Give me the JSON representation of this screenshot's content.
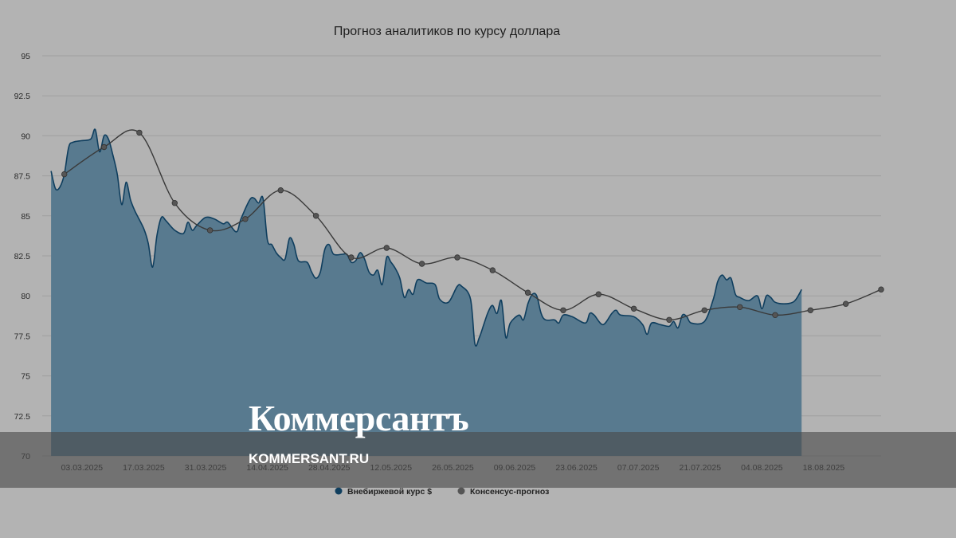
{
  "chart_data": {
    "type": "area",
    "title": "Прогноз аналитиков по курсу доллара",
    "xlabel": "",
    "ylabel": "",
    "ylim": [
      70,
      95
    ],
    "yticks": [
      70,
      72.5,
      75,
      77.5,
      80,
      82.5,
      85,
      87.5,
      90,
      92.5,
      95
    ],
    "xlim": [
      "2025-02-22",
      "2025-08-31"
    ],
    "xticks": [
      "03.03.2025",
      "17.03.2025",
      "31.03.2025",
      "14.04.2025",
      "28.04.2025",
      "12.05.2025",
      "26.05.2025",
      "09.06.2025",
      "23.06.2025",
      "07.07.2025",
      "21.07.2025",
      "04.08.2025",
      "18.08.2025"
    ],
    "grid": true,
    "legend_position": "bottom",
    "colors": {
      "area_fill": "#587a8f",
      "area_line": "#0f3e5e",
      "consensus_line": "#3a3a3a",
      "consensus_marker": "#555555"
    },
    "series": [
      {
        "name": "Внебиржевой курс $",
        "type": "area",
        "points": [
          [
            "2025-02-24",
            87.8
          ],
          [
            "2025-02-25",
            86.7
          ],
          [
            "2025-02-26",
            86.8
          ],
          [
            "2025-02-27",
            87.6
          ],
          [
            "2025-02-28",
            89.3
          ],
          [
            "2025-03-01",
            89.6
          ],
          [
            "2025-03-03",
            89.7
          ],
          [
            "2025-03-05",
            89.8
          ],
          [
            "2025-03-06",
            90.4
          ],
          [
            "2025-03-07",
            89.0
          ],
          [
            "2025-03-08",
            90.0
          ],
          [
            "2025-03-09",
            89.8
          ],
          [
            "2025-03-10",
            88.8
          ],
          [
            "2025-03-11",
            87.6
          ],
          [
            "2025-03-12",
            85.7
          ],
          [
            "2025-03-13",
            87.1
          ],
          [
            "2025-03-14",
            86.0
          ],
          [
            "2025-03-15",
            85.3
          ],
          [
            "2025-03-17",
            84.2
          ],
          [
            "2025-03-18",
            83.3
          ],
          [
            "2025-03-19",
            81.8
          ],
          [
            "2025-03-20",
            83.8
          ],
          [
            "2025-03-21",
            84.9
          ],
          [
            "2025-03-22",
            84.7
          ],
          [
            "2025-03-24",
            84.1
          ],
          [
            "2025-03-26",
            83.9
          ],
          [
            "2025-03-27",
            84.6
          ],
          [
            "2025-03-28",
            84.1
          ],
          [
            "2025-03-29",
            84.4
          ],
          [
            "2025-03-31",
            84.9
          ],
          [
            "2025-04-02",
            84.8
          ],
          [
            "2025-04-04",
            84.5
          ],
          [
            "2025-04-05",
            84.6
          ],
          [
            "2025-04-07",
            84.0
          ],
          [
            "2025-04-08",
            84.8
          ],
          [
            "2025-04-10",
            86.0
          ],
          [
            "2025-04-11",
            86.1
          ],
          [
            "2025-04-12",
            85.8
          ],
          [
            "2025-04-13",
            86.1
          ],
          [
            "2025-04-14",
            83.5
          ],
          [
            "2025-04-15",
            83.2
          ],
          [
            "2025-04-16",
            82.7
          ],
          [
            "2025-04-17",
            82.4
          ],
          [
            "2025-04-18",
            82.3
          ],
          [
            "2025-04-19",
            83.6
          ],
          [
            "2025-04-20",
            83.2
          ],
          [
            "2025-04-21",
            82.2
          ],
          [
            "2025-04-23",
            82.1
          ],
          [
            "2025-04-24",
            81.5
          ],
          [
            "2025-04-25",
            81.1
          ],
          [
            "2025-04-26",
            81.5
          ],
          [
            "2025-04-27",
            82.9
          ],
          [
            "2025-04-28",
            83.2
          ],
          [
            "2025-04-29",
            82.6
          ],
          [
            "2025-05-01",
            82.6
          ],
          [
            "2025-05-02",
            82.6
          ],
          [
            "2025-05-03",
            82.1
          ],
          [
            "2025-05-04",
            82.2
          ],
          [
            "2025-05-05",
            82.7
          ],
          [
            "2025-05-06",
            82.3
          ],
          [
            "2025-05-07",
            81.5
          ],
          [
            "2025-05-08",
            81.3
          ],
          [
            "2025-05-09",
            81.6
          ],
          [
            "2025-05-10",
            80.7
          ],
          [
            "2025-05-11",
            82.4
          ],
          [
            "2025-05-12",
            82.1
          ],
          [
            "2025-05-13",
            81.7
          ],
          [
            "2025-05-14",
            81.1
          ],
          [
            "2025-05-15",
            79.9
          ],
          [
            "2025-05-16",
            80.4
          ],
          [
            "2025-05-17",
            80.1
          ],
          [
            "2025-05-18",
            81.0
          ],
          [
            "2025-05-20",
            80.8
          ],
          [
            "2025-05-22",
            80.7
          ],
          [
            "2025-05-23",
            79.8
          ],
          [
            "2025-05-25",
            79.6
          ],
          [
            "2025-05-27",
            80.6
          ],
          [
            "2025-05-28",
            80.6
          ],
          [
            "2025-05-30",
            79.8
          ],
          [
            "2025-05-31",
            77.0
          ],
          [
            "2025-06-01",
            77.4
          ],
          [
            "2025-06-02",
            78.2
          ],
          [
            "2025-06-03",
            79.0
          ],
          [
            "2025-06-04",
            79.4
          ],
          [
            "2025-06-05",
            78.9
          ],
          [
            "2025-06-06",
            79.7
          ],
          [
            "2025-06-07",
            77.4
          ],
          [
            "2025-06-08",
            78.3
          ],
          [
            "2025-06-10",
            78.8
          ],
          [
            "2025-06-11",
            78.5
          ],
          [
            "2025-06-12",
            79.5
          ],
          [
            "2025-06-13",
            80.1
          ],
          [
            "2025-06-14",
            80.0
          ],
          [
            "2025-06-15",
            78.9
          ],
          [
            "2025-06-16",
            78.5
          ],
          [
            "2025-06-18",
            78.5
          ],
          [
            "2025-06-19",
            78.3
          ],
          [
            "2025-06-20",
            78.8
          ],
          [
            "2025-06-22",
            78.7
          ],
          [
            "2025-06-25",
            78.3
          ],
          [
            "2025-06-26",
            78.9
          ],
          [
            "2025-06-27",
            78.8
          ],
          [
            "2025-06-29",
            78.2
          ],
          [
            "2025-07-01",
            78.9
          ],
          [
            "2025-07-02",
            79.1
          ],
          [
            "2025-07-03",
            78.8
          ],
          [
            "2025-07-06",
            78.7
          ],
          [
            "2025-07-08",
            78.2
          ],
          [
            "2025-07-09",
            77.6
          ],
          [
            "2025-07-10",
            78.3
          ],
          [
            "2025-07-12",
            78.2
          ],
          [
            "2025-07-14",
            78.1
          ],
          [
            "2025-07-15",
            78.4
          ],
          [
            "2025-07-16",
            78.0
          ],
          [
            "2025-07-17",
            78.8
          ],
          [
            "2025-07-18",
            78.7
          ],
          [
            "2025-07-19",
            78.3
          ],
          [
            "2025-07-22",
            78.4
          ],
          [
            "2025-07-24",
            79.8
          ],
          [
            "2025-07-25",
            80.9
          ],
          [
            "2025-07-26",
            81.3
          ],
          [
            "2025-07-27",
            81.0
          ],
          [
            "2025-07-28",
            81.1
          ],
          [
            "2025-07-29",
            80.1
          ],
          [
            "2025-07-30",
            79.9
          ],
          [
            "2025-08-01",
            79.7
          ],
          [
            "2025-08-03",
            80.0
          ],
          [
            "2025-08-04",
            79.2
          ],
          [
            "2025-08-05",
            80.0
          ],
          [
            "2025-08-06",
            79.9
          ],
          [
            "2025-08-07",
            79.6
          ],
          [
            "2025-08-09",
            79.5
          ],
          [
            "2025-08-11",
            79.6
          ],
          [
            "2025-08-12",
            79.9
          ],
          [
            "2025-08-13",
            80.4
          ]
        ]
      },
      {
        "name": "Консенсус-прогноз",
        "type": "line",
        "points": [
          [
            "2025-02-27",
            87.6
          ],
          [
            "2025-03-08",
            89.3
          ],
          [
            "2025-03-16",
            90.2
          ],
          [
            "2025-03-24",
            85.8
          ],
          [
            "2025-04-01",
            84.1
          ],
          [
            "2025-04-09",
            84.8
          ],
          [
            "2025-04-17",
            86.6
          ],
          [
            "2025-04-25",
            85.0
          ],
          [
            "2025-05-03",
            82.4
          ],
          [
            "2025-05-11",
            83.0
          ],
          [
            "2025-05-19",
            82.0
          ],
          [
            "2025-05-27",
            82.4
          ],
          [
            "2025-06-04",
            81.6
          ],
          [
            "2025-06-12",
            80.2
          ],
          [
            "2025-06-20",
            79.1
          ],
          [
            "2025-06-28",
            80.1
          ],
          [
            "2025-07-06",
            79.2
          ],
          [
            "2025-07-14",
            78.5
          ],
          [
            "2025-07-22",
            79.1
          ],
          [
            "2025-07-30",
            79.3
          ],
          [
            "2025-08-07",
            78.8
          ],
          [
            "2025-08-15",
            79.1
          ],
          [
            "2025-08-23",
            79.5
          ],
          [
            "2025-08-31",
            80.4
          ]
        ]
      }
    ]
  },
  "watermark": {
    "logo_text": "Коммерсантъ",
    "url": "KOMMERSANT.RU"
  }
}
